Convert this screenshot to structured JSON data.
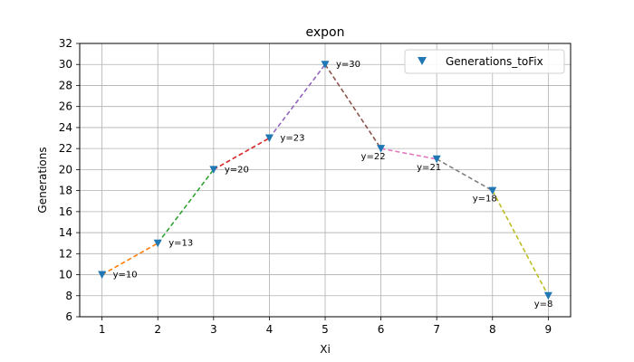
{
  "chart_data": {
    "type": "line",
    "title": "expon",
    "xlabel": "Xi",
    "ylabel": "Generations",
    "x": [
      1,
      2,
      3,
      4,
      5,
      6,
      7,
      8,
      9
    ],
    "xticks": [
      "1",
      "2",
      "3",
      "4",
      "5",
      "6",
      "7",
      "8",
      "9"
    ],
    "yticks": [
      "6",
      "8",
      "10",
      "12",
      "14",
      "16",
      "18",
      "20",
      "22",
      "24",
      "26",
      "28",
      "30",
      "32"
    ],
    "xlim": [
      0.6,
      9.4
    ],
    "ylim": [
      6,
      32
    ],
    "grid": true,
    "legend_position": "top-right",
    "series": [
      {
        "name": "Generations_toFix",
        "values": [
          10,
          13,
          20,
          23,
          30,
          22,
          21,
          18,
          8
        ],
        "marker": "triangle-down",
        "marker_color": "#1f77b4"
      }
    ],
    "data_labels": [
      "y=10",
      "y=13",
      "y=20",
      "y=23",
      "y=30",
      "y=22",
      "y=21",
      "y=18",
      "y=8"
    ],
    "segment_colors": [
      "#ff7f0e",
      "#2ca02c",
      "#d62728",
      "#9467bd",
      "#8c564b",
      "#e377c2",
      "#7f7f7f",
      "#bcbd22"
    ],
    "segment_style": "dashed"
  }
}
